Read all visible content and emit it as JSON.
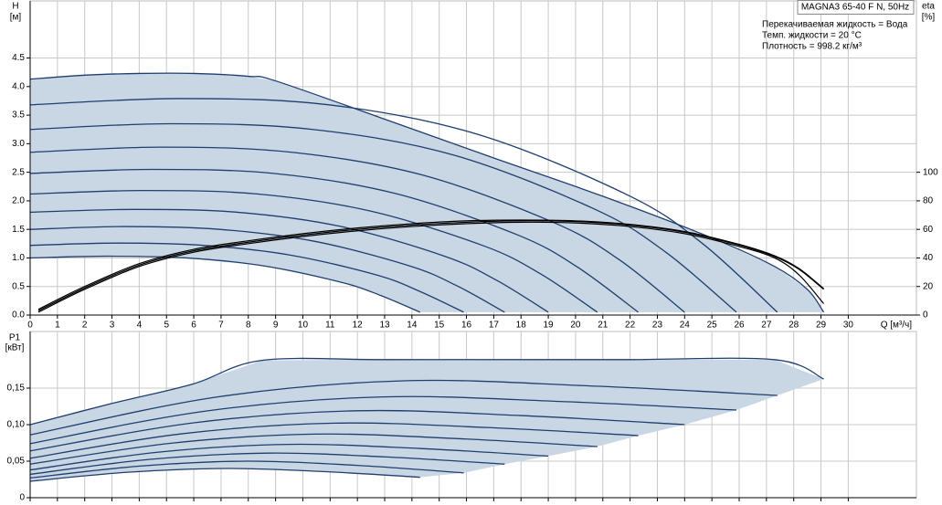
{
  "chart_data": [
    {
      "type": "line",
      "title": "MAGNA3 65-40 F N, 50Hz",
      "annotations": [
        "Перекачиваемая жидкость = Вода",
        "Темп. жидкости = 20 °C",
        "Плотность = 998.2 кг/м³"
      ],
      "ylabel": "H",
      "yunit": "[м]",
      "y2label": "eta",
      "y2unit": "[%]",
      "xlabel": "Q [м³/ч]",
      "xlim": [
        0,
        32.5
      ],
      "ylim": [
        0,
        5.5
      ],
      "y2lim": [
        0,
        220
      ],
      "grid": true,
      "fill": "#c9d6e4",
      "xticks": [
        0,
        1,
        2,
        3,
        4,
        5,
        6,
        7,
        8,
        9,
        10,
        11,
        12,
        13,
        14,
        15,
        16,
        17,
        18,
        19,
        20,
        21,
        22,
        23,
        24,
        25,
        26,
        27,
        28,
        29,
        30
      ],
      "yticks": [
        {
          "value": 0,
          "label": "0.0"
        },
        {
          "value": 0.5,
          "label": "0.5"
        },
        {
          "value": 1,
          "label": "1.0"
        },
        {
          "value": 1.5,
          "label": "1.5"
        },
        {
          "value": 2,
          "label": "2.0"
        },
        {
          "value": 2.5,
          "label": "2.5"
        },
        {
          "value": 3,
          "label": "3.0"
        },
        {
          "value": 3.5,
          "label": "3.5"
        },
        {
          "value": 4,
          "label": "4.0"
        },
        {
          "value": 4.5,
          "label": "4.5"
        }
      ],
      "y2ticks": [
        0,
        20,
        40,
        60,
        80,
        100
      ],
      "series": [
        {
          "color": "#1f3f70",
          "x": [
            0,
            2.86,
            5.72,
            8.58,
            11.44,
            12.87,
            14.3
          ],
          "values": [
            1.0,
            1.03,
            1.0,
            0.86,
            0.57,
            0.34,
            0.05
          ]
        },
        {
          "color": "#1f3f70",
          "x": [
            0,
            3.18,
            6.36,
            9.54,
            12.72,
            14.31,
            15.9
          ],
          "values": [
            1.22,
            1.26,
            1.22,
            1.05,
            0.7,
            0.41,
            0.05
          ]
        },
        {
          "color": "#1f3f70",
          "x": [
            0,
            3.48,
            6.96,
            10.44,
            13.92,
            15.66,
            17.4
          ],
          "values": [
            1.5,
            1.55,
            1.5,
            1.29,
            0.86,
            0.51,
            0.05
          ]
        },
        {
          "color": "#1f3f70",
          "x": [
            0,
            3.8,
            7.6,
            11.4,
            15.2,
            17.1,
            19.0
          ],
          "values": [
            1.8,
            1.85,
            1.8,
            1.55,
            1.03,
            0.61,
            0.05
          ]
        },
        {
          "color": "#1f3f70",
          "x": [
            0,
            4.16,
            8.32,
            12.48,
            16.64,
            18.72,
            20.8
          ],
          "values": [
            2.12,
            2.18,
            2.12,
            1.82,
            1.21,
            0.72,
            0.05
          ]
        },
        {
          "color": "#1f3f70",
          "x": [
            0,
            4.46,
            8.92,
            13.38,
            17.84,
            20.07,
            22.3
          ],
          "values": [
            2.48,
            2.55,
            2.48,
            2.13,
            1.41,
            0.84,
            0.05
          ]
        },
        {
          "color": "#1f3f70",
          "x": [
            0,
            4.8,
            9.6,
            14.4,
            19.2,
            21.6,
            24.0
          ],
          "values": [
            2.85,
            2.94,
            2.85,
            2.45,
            1.62,
            0.97,
            0.05
          ]
        },
        {
          "color": "#1f3f70",
          "x": [
            0,
            5.18,
            10.36,
            15.54,
            20.72,
            23.31,
            25.9
          ],
          "values": [
            3.25,
            3.35,
            3.25,
            2.8,
            1.85,
            1.1,
            0.05
          ]
        },
        {
          "color": "#1f3f70",
          "x": [
            0,
            5.48,
            10.96,
            16.44,
            21.92,
            24.66,
            27.4
          ],
          "values": [
            3.68,
            3.79,
            3.68,
            3.16,
            2.1,
            1.25,
            0.05
          ]
        },
        {
          "color": "#1f3f70",
          "x": [
            0,
            2,
            4,
            6,
            8,
            9,
            13,
            17,
            21,
            25,
            27.3,
            28.5,
            29.1
          ],
          "values": [
            4.13,
            4.2,
            4.23,
            4.23,
            4.18,
            4.1,
            3.43,
            2.75,
            2.08,
            1.35,
            0.85,
            0.45,
            0.05
          ]
        },
        {
          "color": "#000000",
          "axis": "y2",
          "x": [
            0.3,
            2,
            4,
            6,
            8,
            10,
            12,
            14,
            16,
            18,
            20,
            22,
            24,
            26,
            27.3,
            28.2,
            29.1
          ],
          "values": [
            3,
            19,
            35,
            45,
            51,
            56,
            60,
            63,
            65,
            66,
            65.5,
            63,
            58,
            49,
            41,
            32,
            18
          ]
        },
        {
          "color": "#000000",
          "axis": "y2",
          "x": [
            0.3,
            2,
            4,
            6,
            8,
            10,
            12,
            14,
            16,
            18,
            20,
            22,
            24,
            26,
            27.3,
            28.2,
            29.1
          ],
          "values": [
            4,
            20,
            36,
            46,
            52,
            57,
            61,
            64,
            66,
            66.5,
            66,
            63.5,
            58.5,
            49.5,
            41.5,
            32.5,
            18.5
          ]
        },
        {
          "color": "#000000",
          "axis": "y2",
          "x": [
            0.3,
            2,
            4,
            6,
            8,
            10,
            12,
            14,
            16,
            18,
            20,
            22,
            24,
            26,
            27.3,
            28.2,
            29.1
          ],
          "values": [
            2,
            18,
            34,
            44,
            50,
            55,
            59,
            62,
            64,
            65,
            64.5,
            62,
            57,
            48,
            40,
            28,
            8
          ]
        }
      ]
    },
    {
      "type": "line",
      "ylabel": "P1",
      "yunit": "[кВт]",
      "xlim": [
        0,
        32.5
      ],
      "ylim": [
        0,
        0.2275
      ],
      "grid": true,
      "fill": "#c9d6e4",
      "xticks": [
        0,
        1,
        2,
        3,
        4,
        5,
        6,
        7,
        8,
        9,
        10,
        11,
        12,
        13,
        14,
        15,
        16,
        17,
        18,
        19,
        20,
        21,
        22,
        23,
        24,
        25,
        26,
        27,
        28,
        29,
        30
      ],
      "yticks": [
        0,
        {
          "value": 0.05,
          "label": "0,05"
        },
        {
          "value": 0.1,
          "label": "0,10"
        },
        {
          "value": 0.15,
          "label": "0,15"
        }
      ],
      "series": [
        {
          "color": "#1f3f70",
          "x": [
            0,
            3.58,
            7.15,
            10.73,
            14.3
          ],
          "values": [
            0.0225,
            0.0348,
            0.04,
            0.0358,
            0.028
          ]
        },
        {
          "color": "#1f3f70",
          "x": [
            0,
            3.98,
            7.95,
            11.93,
            15.9
          ],
          "values": [
            0.027,
            0.0431,
            0.05,
            0.0444,
            0.034
          ]
        },
        {
          "color": "#1f3f70",
          "x": [
            0,
            4.35,
            8.7,
            13.05,
            17.4
          ],
          "values": [
            0.032,
            0.0523,
            0.061,
            0.0558,
            0.046
          ]
        },
        {
          "color": "#1f3f70",
          "x": [
            0,
            4.75,
            9.5,
            14.25,
            19.0
          ],
          "values": [
            0.038,
            0.0625,
            0.073,
            0.0674,
            0.057
          ]
        },
        {
          "color": "#1f3f70",
          "x": [
            0,
            5.2,
            10.4,
            15.6,
            20.8
          ],
          "values": [
            0.046,
            0.0747,
            0.087,
            0.081,
            0.07
          ]
        },
        {
          "color": "#1f3f70",
          "x": [
            0,
            5.58,
            11.15,
            16.73,
            22.3
          ],
          "values": [
            0.054,
            0.0876,
            0.102,
            0.0961,
            0.085
          ]
        },
        {
          "color": "#1f3f70",
          "x": [
            0,
            6,
            12,
            18,
            24
          ],
          "values": [
            0.064,
            0.1025,
            0.119,
            0.1124,
            0.1
          ]
        },
        {
          "color": "#1f3f70",
          "x": [
            0,
            6.48,
            12.95,
            19.43,
            25.9
          ],
          "values": [
            0.074,
            0.1188,
            0.138,
            0.1317,
            0.12
          ]
        },
        {
          "color": "#1f3f70",
          "x": [
            0,
            6.85,
            13.7,
            20.55,
            27.4
          ],
          "values": [
            0.086,
            0.1378,
            0.16,
            0.153,
            0.14
          ]
        },
        {
          "color": "#1f3f70",
          "x": [
            0,
            3,
            6,
            8.5,
            13,
            19,
            22,
            27.3,
            29.1
          ],
          "values": [
            0.1,
            0.129,
            0.156,
            0.188,
            0.189,
            0.189,
            0.189,
            0.189,
            0.1625
          ]
        }
      ]
    }
  ]
}
